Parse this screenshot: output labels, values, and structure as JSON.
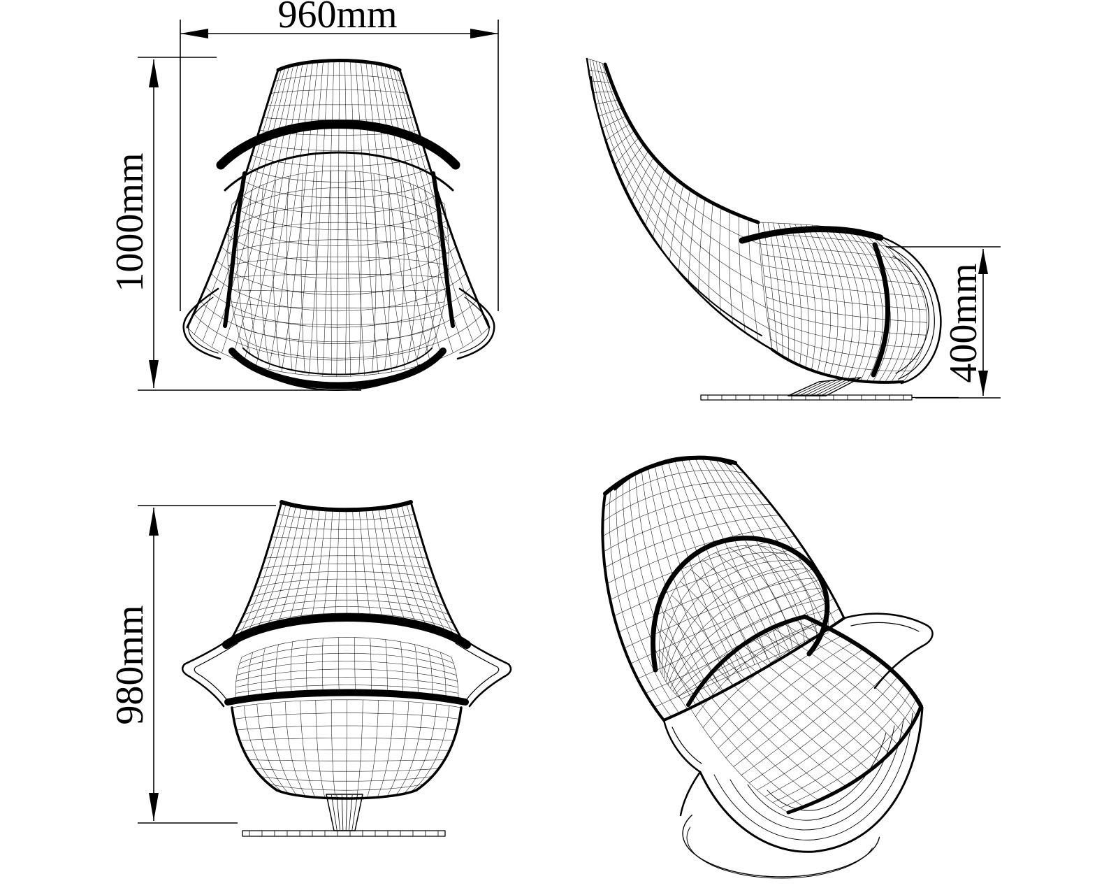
{
  "drawing": {
    "background_color": "#ffffff",
    "line_color": "#000000",
    "dimensions": {
      "top_width": {
        "label": "960mm",
        "value_mm": 960
      },
      "overall_height": {
        "label": "1000mm",
        "value_mm": 1000
      },
      "seat_height": {
        "label": "400mm",
        "value_mm": 400
      },
      "front_height": {
        "label": "980mm",
        "value_mm": 980
      }
    }
  }
}
